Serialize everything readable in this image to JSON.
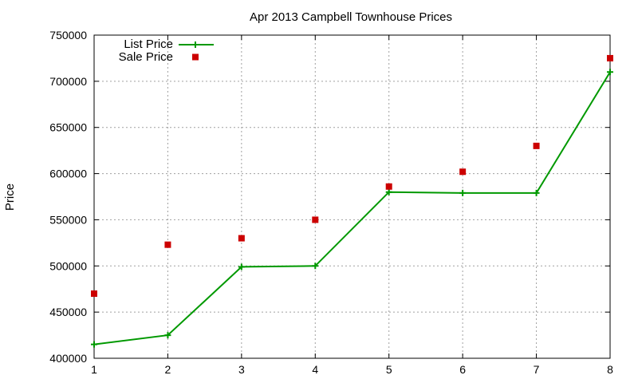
{
  "chart_data": {
    "type": "line",
    "title": "Apr 2013 Campbell Townhouse Prices",
    "xlabel": "",
    "ylabel": "Price",
    "xlim": [
      1,
      8
    ],
    "ylim": [
      400000,
      750000
    ],
    "x_ticks": [
      "1",
      "2",
      "3",
      "4",
      "5",
      "6",
      "7",
      "8"
    ],
    "y_ticks": [
      "400000",
      "450000",
      "500000",
      "550000",
      "600000",
      "650000",
      "700000",
      "750000"
    ],
    "grid": true,
    "legend_position": "top-left",
    "series": [
      {
        "name": "List Price",
        "style": "line-with-plus-markers",
        "color": "#009900",
        "x": [
          1,
          2,
          3,
          4,
          5,
          6,
          7,
          8
        ],
        "values": [
          415000,
          425000,
          499000,
          500000,
          580000,
          579000,
          579000,
          710000
        ]
      },
      {
        "name": "Sale Price",
        "style": "square-points",
        "color": "#cc0000",
        "x": [
          1,
          2,
          3,
          4,
          5,
          6,
          7,
          8
        ],
        "values": [
          470000,
          523000,
          530000,
          550000,
          586000,
          602000,
          630000,
          725000
        ]
      }
    ]
  }
}
